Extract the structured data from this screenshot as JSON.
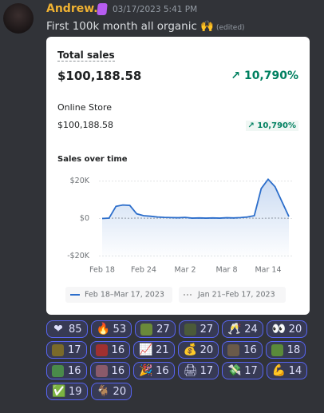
{
  "message": {
    "author": "Andrew.",
    "timestamp": "03/17/2023 5:41 PM",
    "text": "First 100k month all organic 🙌",
    "edited": "(edited)"
  },
  "card": {
    "total_label": "Total sales",
    "total_value": "$100,188.58",
    "total_change": "↗ 10,790%",
    "store_label": "Online Store",
    "store_value": "$100,188.58",
    "store_change": "↗ 10,790%"
  },
  "chart_data": {
    "type": "line",
    "title": "Sales over time",
    "categories": [
      "Feb 18",
      null,
      null,
      null,
      null,
      null,
      "Feb 24",
      null,
      null,
      null,
      null,
      null,
      "Mar 2",
      null,
      null,
      null,
      null,
      null,
      "Mar 8",
      null,
      null,
      null,
      null,
      null,
      "Mar 14",
      null,
      null,
      null
    ],
    "series": [
      {
        "name": "Feb 18–Mar 17, 2023",
        "color": "#2c6ecb",
        "dashed": false,
        "values": [
          0,
          200,
          6500,
          7200,
          7000,
          2500,
          1500,
          1200,
          800,
          600,
          500,
          400,
          600,
          200,
          300,
          200,
          300,
          200,
          400,
          300,
          500,
          800,
          1500,
          16000,
          21000,
          17000,
          9000,
          1000
        ]
      },
      {
        "name": "Jan 21–Feb 17, 2023",
        "color": "#b5b5b5",
        "dashed": true,
        "values": [
          200,
          100,
          300,
          200,
          100,
          300,
          200,
          100,
          200,
          300,
          200,
          100,
          200,
          300,
          200,
          100,
          200,
          300,
          200,
          100,
          200,
          300,
          200,
          100,
          200,
          300,
          200,
          100
        ]
      }
    ],
    "ylim": [
      -22000,
      25000
    ],
    "yticks": [
      {
        "value": -20000,
        "label": "-$20K"
      },
      {
        "value": 0,
        "label": "$0"
      },
      {
        "value": 20000,
        "label": "$20K"
      }
    ],
    "grid": true
  },
  "reactions": [
    {
      "emoji": "❤",
      "count": 85
    },
    {
      "emoji": "🔥",
      "count": 53
    },
    {
      "emoji": null,
      "color": "#6a8a3a",
      "count": 27
    },
    {
      "emoji": null,
      "color": "#4b5a3a",
      "count": 27
    },
    {
      "emoji": "🥂",
      "count": 24
    },
    {
      "emoji": "👀",
      "count": 20
    },
    {
      "emoji": null,
      "color": "#7a6a2a",
      "count": 17
    },
    {
      "emoji": null,
      "color": "#a03030",
      "count": 16
    },
    {
      "emoji": "📈",
      "count": 21
    },
    {
      "emoji": "💰",
      "count": 20
    },
    {
      "emoji": null,
      "color": "#6a5a4a",
      "count": 16
    },
    {
      "emoji": null,
      "color": "#5a8a3a",
      "count": 18
    },
    {
      "emoji": null,
      "color": "#4a8a4a",
      "count": 16
    },
    {
      "emoji": null,
      "color": "#8a5a6a",
      "count": 16
    },
    {
      "emoji": "🎉",
      "count": 16
    },
    {
      "emoji": "🖨",
      "count": 17
    },
    {
      "emoji": "💸",
      "count": 17
    },
    {
      "emoji": "💪",
      "count": 14
    },
    {
      "emoji": "✅",
      "count": 19
    },
    {
      "emoji": "🐐",
      "count": 20
    }
  ]
}
